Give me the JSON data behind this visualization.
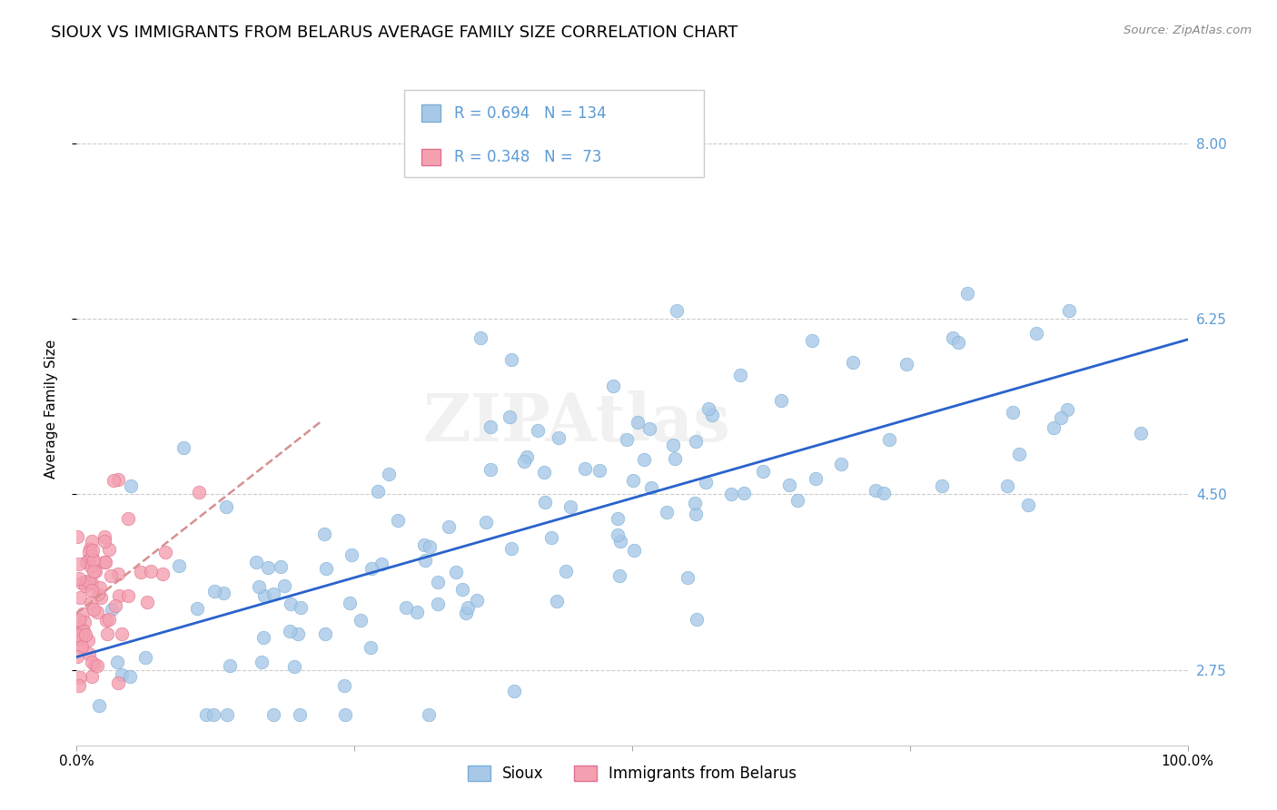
{
  "title": "SIOUX VS IMMIGRANTS FROM BELARUS AVERAGE FAMILY SIZE CORRELATION CHART",
  "source": "Source: ZipAtlas.com",
  "ylabel": "Average Family Size",
  "xlim": [
    0,
    1
  ],
  "ylim": [
    2.0,
    8.7
  ],
  "yticks": [
    2.75,
    4.5,
    6.25,
    8.0
  ],
  "ytick_color": "#5b9bd5",
  "sioux_color": "#a8c8e8",
  "sioux_edge_color": "#7aafd4",
  "belarus_color": "#f4a0b0",
  "belarus_edge_color": "#e07090",
  "sioux_line_color": "#2962cc",
  "belarus_line_color": "#d89090",
  "legend_sioux_R": "0.694",
  "legend_sioux_N": "134",
  "legend_belarus_R": "0.348",
  "legend_belarus_N": "73",
  "sioux_R": 0.694,
  "sioux_N": 134,
  "belarus_R": 0.348,
  "belarus_N": 73,
  "watermark": "ZIPAtlas",
  "background_color": "#ffffff",
  "grid_color": "#cccccc",
  "title_fontsize": 13,
  "axis_label_fontsize": 11,
  "tick_fontsize": 11,
  "legend_fontsize": 12
}
